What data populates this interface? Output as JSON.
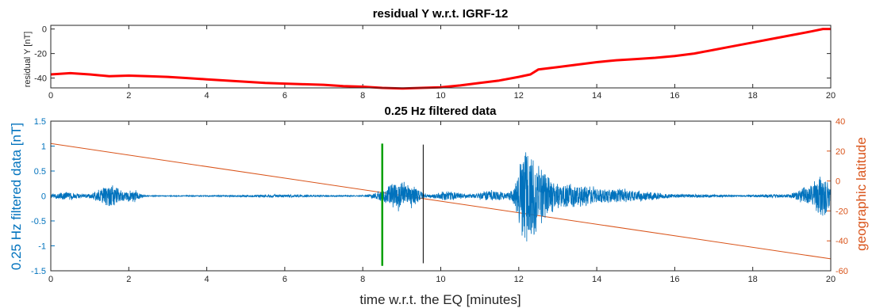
{
  "chart_data": [
    {
      "type": "line",
      "title": "residual Y w.r.t. IGRF-12",
      "xlabel": "",
      "ylabel": "residual Y [nT]",
      "xlim": [
        0,
        20
      ],
      "ylim": [
        -48,
        3
      ],
      "x_ticks": [
        "0",
        "2",
        "4",
        "6",
        "8",
        "10",
        "12",
        "14",
        "16",
        "18",
        "20"
      ],
      "y_ticks": [
        "0",
        "-20",
        "-40"
      ],
      "grid": false,
      "series": [
        {
          "color": "#ff0000",
          "x": [
            0,
            0.5,
            1,
            1.5,
            2,
            2.5,
            3,
            3.5,
            4,
            4.5,
            5,
            5.5,
            6,
            6.5,
            7,
            7.5,
            8,
            8.5,
            9,
            9.5,
            10,
            10.5,
            11,
            11.5,
            12,
            12.3,
            12.5,
            13,
            13.5,
            14,
            14.5,
            15,
            15.5,
            16,
            16.5,
            17,
            17.5,
            18,
            18.5,
            19,
            19.5,
            19.8,
            20
          ],
          "y": [
            -37,
            -36,
            -37,
            -38.5,
            -38,
            -38.5,
            -39,
            -40,
            -41,
            -42,
            -43,
            -44,
            -44.5,
            -45,
            -45.5,
            -46.5,
            -47,
            -48,
            -48.5,
            -48,
            -47.5,
            -46,
            -44,
            -42,
            -39,
            -37,
            -33,
            -31,
            -29,
            -27,
            -25.5,
            -24.5,
            -23.5,
            -22,
            -20,
            -17,
            -14,
            -11,
            -8,
            -5,
            -2,
            0,
            0
          ]
        }
      ]
    },
    {
      "type": "line",
      "title": "0.25 Hz filtered data",
      "xlabel": "time w.r.t. the EQ [minutes]",
      "ylabel": "0.25 Hz filtered data [nT]",
      "y2label": "geographic latitude",
      "xlim": [
        0,
        20
      ],
      "ylim": [
        -1.5,
        1.5
      ],
      "y2lim": [
        -60,
        40
      ],
      "x_ticks": [
        "0",
        "2",
        "4",
        "6",
        "8",
        "10",
        "12",
        "14",
        "16",
        "18",
        "20"
      ],
      "y_ticks": [
        "1.5",
        "1",
        "0.5",
        "0",
        "-0.5",
        "-1",
        "-1.5"
      ],
      "y2_ticks": [
        "40",
        "20",
        "0",
        "-20",
        "-40",
        "-60"
      ],
      "grid": false,
      "series": [
        {
          "axis": "left",
          "color": "#0072bd",
          "bursts": [
            {
              "t": 0.4,
              "amp": 0.08,
              "w": 0.4
            },
            {
              "t": 1.5,
              "amp": 0.25,
              "w": 0.35
            },
            {
              "t": 2.1,
              "amp": 0.12,
              "w": 0.2
            },
            {
              "t": 5.8,
              "amp": 0.02,
              "w": 1.2
            },
            {
              "t": 8.5,
              "amp": 0.08,
              "w": 0.3
            },
            {
              "t": 8.9,
              "amp": 0.3,
              "w": 0.3
            },
            {
              "t": 9.3,
              "amp": 0.2,
              "w": 0.2
            },
            {
              "t": 10.2,
              "amp": 0.1,
              "w": 0.4
            },
            {
              "t": 11.3,
              "amp": 0.12,
              "w": 0.4
            },
            {
              "t": 12.2,
              "amp": 1.2,
              "w": 0.25
            },
            {
              "t": 12.6,
              "amp": 0.5,
              "w": 0.25
            },
            {
              "t": 13.1,
              "amp": 0.25,
              "w": 0.4
            },
            {
              "t": 13.7,
              "amp": 0.2,
              "w": 0.4
            },
            {
              "t": 14.5,
              "amp": 0.15,
              "w": 0.5
            },
            {
              "t": 15.3,
              "amp": 0.08,
              "w": 0.5
            },
            {
              "t": 16.5,
              "amp": 0.03,
              "w": 0.8
            },
            {
              "t": 18.5,
              "amp": 0.03,
              "w": 0.6
            },
            {
              "t": 19.4,
              "amp": 0.2,
              "w": 0.3
            },
            {
              "t": 19.8,
              "amp": 0.5,
              "w": 0.2
            }
          ]
        },
        {
          "axis": "right",
          "color": "#d95319",
          "x": [
            0,
            20
          ],
          "y": [
            25,
            -52
          ]
        }
      ],
      "markers": [
        {
          "x": 8.5,
          "color": "#00a000",
          "ymin": -1.4,
          "ymax": 1.05
        },
        {
          "x": 9.55,
          "color": "#000000",
          "ymin": -1.35,
          "ymax": 1.03
        }
      ]
    }
  ]
}
